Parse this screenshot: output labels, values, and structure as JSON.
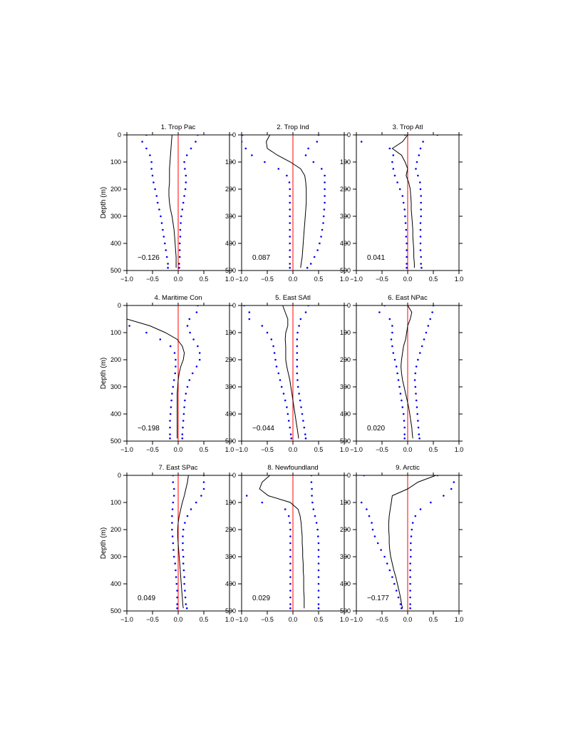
{
  "chart_data": {
    "type": "line",
    "ylabel": "Depth (m)",
    "xlim": [
      -1.0,
      1.0
    ],
    "ylim": [
      0,
      500
    ],
    "xticks": [
      "-1.0",
      "-0.5",
      "0.0",
      "0.5",
      "1.0"
    ],
    "yticks": [
      "0",
      "100",
      "200",
      "300",
      "400",
      "500"
    ],
    "colors": {
      "correlation": "#000000",
      "bound": "#0000ee",
      "zero_line": "#ff0000"
    },
    "depth": [
      0,
      25,
      50,
      75,
      100,
      125,
      150,
      175,
      200,
      225,
      250,
      275,
      300,
      325,
      350,
      375,
      400,
      425,
      450,
      475,
      490
    ],
    "panels": [
      {
        "title": "1. Trop Pac",
        "corr_label": "−0.126",
        "corr": [
          -0.12,
          -0.13,
          -0.14,
          -0.15,
          -0.16,
          -0.17,
          -0.17,
          -0.17,
          -0.18,
          -0.18,
          -0.17,
          -0.15,
          -0.12,
          -0.1,
          -0.08,
          -0.07,
          -0.06,
          -0.05,
          -0.04,
          -0.04,
          -0.04
        ],
        "lower": [
          -0.62,
          -0.7,
          -0.62,
          -0.55,
          -0.52,
          -0.52,
          -0.5,
          -0.48,
          -0.45,
          -0.42,
          -0.4,
          -0.37,
          -0.34,
          -0.32,
          -0.3,
          -0.28,
          -0.26,
          -0.24,
          -0.22,
          -0.2,
          -0.2
        ],
        "upper": [
          0.38,
          0.34,
          0.25,
          0.17,
          0.12,
          0.13,
          0.15,
          0.15,
          0.14,
          0.12,
          0.1,
          0.08,
          0.06,
          0.05,
          0.04,
          0.04,
          0.03,
          0.03,
          0.03,
          0.02,
          0.02
        ]
      },
      {
        "title": "2. Trop Ind",
        "corr_label": "0.087",
        "corr": [
          -0.45,
          -0.52,
          -0.5,
          -0.3,
          -0.05,
          0.15,
          0.23,
          0.25,
          0.26,
          0.26,
          0.26,
          0.25,
          0.24,
          0.23,
          0.22,
          0.21,
          0.2,
          0.19,
          0.18,
          0.16,
          0.15
        ],
        "lower": [
          -0.98,
          -1.0,
          -0.92,
          -0.8,
          -0.55,
          -0.28,
          -0.12,
          -0.07,
          -0.06,
          -0.06,
          -0.06,
          -0.06,
          -0.06,
          -0.06,
          -0.06,
          -0.06,
          -0.06,
          -0.06,
          -0.06,
          -0.06,
          -0.06
        ],
        "upper": [
          0.5,
          0.47,
          0.3,
          0.25,
          0.4,
          0.56,
          0.62,
          0.62,
          0.62,
          0.62,
          0.62,
          0.61,
          0.6,
          0.59,
          0.57,
          0.55,
          0.52,
          0.48,
          0.42,
          0.35,
          0.28
        ]
      },
      {
        "title": "3. Trop Atl",
        "corr_label": "0.041",
        "corr": [
          0.0,
          -0.1,
          -0.3,
          -0.12,
          -0.05,
          0.0,
          -0.03,
          0.02,
          0.05,
          0.06,
          0.07,
          0.07,
          0.08,
          0.09,
          0.1,
          0.1,
          0.11,
          0.12,
          0.12,
          0.13,
          0.13
        ],
        "lower": [
          -0.05,
          -0.9,
          -0.35,
          -0.28,
          -0.3,
          -0.28,
          -0.25,
          -0.2,
          -0.15,
          -0.1,
          -0.08,
          -0.06,
          -0.05,
          -0.04,
          -0.03,
          -0.03,
          -0.02,
          -0.02,
          -0.02,
          -0.02,
          -0.02
        ],
        "upper": [
          0.58,
          0.3,
          0.25,
          0.22,
          0.18,
          0.16,
          0.2,
          0.24,
          0.25,
          0.26,
          0.26,
          0.26,
          0.26,
          0.25,
          0.25,
          0.25,
          0.25,
          0.25,
          0.26,
          0.26,
          0.27
        ]
      },
      {
        "title": "4. Maritime Con",
        "corr_label": "−0.198",
        "corr": [
          null,
          null,
          -1.0,
          -0.55,
          -0.25,
          -0.02,
          0.08,
          0.12,
          0.1,
          0.05,
          0.02,
          0.0,
          -0.01,
          -0.02,
          -0.02,
          -0.02,
          -0.02,
          -0.02,
          -0.02,
          -0.02,
          -0.02
        ],
        "lower": [
          null,
          null,
          null,
          -0.95,
          -0.62,
          -0.35,
          -0.15,
          -0.07,
          -0.05,
          -0.05,
          -0.06,
          -0.08,
          -0.1,
          -0.12,
          -0.13,
          -0.14,
          -0.15,
          -0.16,
          -0.16,
          -0.16,
          -0.16
        ],
        "upper": [
          0.38,
          0.36,
          0.22,
          0.18,
          0.23,
          0.3,
          0.38,
          0.42,
          0.42,
          0.36,
          0.28,
          0.22,
          0.18,
          0.15,
          0.13,
          0.12,
          0.11,
          0.1,
          0.09,
          0.08,
          0.08
        ]
      },
      {
        "title": "5. East SAtl",
        "corr_label": "−0.044",
        "corr": [
          -0.2,
          -0.15,
          -0.1,
          -0.1,
          -0.14,
          -0.15,
          -0.14,
          -0.14,
          -0.14,
          -0.12,
          -0.09,
          -0.06,
          -0.04,
          -0.02,
          0.0,
          0.02,
          0.04,
          0.06,
          0.08,
          0.1,
          0.11
        ],
        "lower": [
          -0.95,
          -0.85,
          -0.85,
          -0.6,
          -0.5,
          -0.42,
          -0.38,
          -0.36,
          -0.34,
          -0.32,
          -0.28,
          -0.25,
          -0.22,
          -0.18,
          -0.15,
          -0.12,
          -0.1,
          -0.08,
          -0.06,
          -0.04,
          -0.03
        ],
        "upper": [
          0.3,
          0.25,
          0.15,
          0.12,
          0.09,
          0.08,
          0.08,
          0.08,
          0.08,
          0.08,
          0.08,
          0.09,
          0.1,
          0.12,
          0.14,
          0.16,
          0.18,
          0.2,
          0.22,
          0.24,
          0.25
        ]
      },
      {
        "title": "6. East NPac",
        "corr_label": "0.020",
        "corr": [
          0.0,
          0.08,
          0.05,
          0.0,
          -0.02,
          -0.04,
          -0.08,
          -0.1,
          -0.12,
          -0.13,
          -0.12,
          -0.1,
          -0.07,
          -0.04,
          -0.01,
          0.02,
          0.04,
          0.06,
          0.08,
          0.09,
          0.1
        ],
        "lower": [
          -0.45,
          -0.55,
          -0.35,
          -0.3,
          -0.3,
          -0.32,
          -0.3,
          -0.28,
          -0.25,
          -0.22,
          -0.2,
          -0.18,
          -0.16,
          -0.14,
          -0.12,
          -0.1,
          -0.08,
          -0.07,
          -0.06,
          -0.06,
          -0.06
        ],
        "upper": [
          0.5,
          0.48,
          0.44,
          0.4,
          0.36,
          0.32,
          0.28,
          0.24,
          0.2,
          0.17,
          0.15,
          0.14,
          0.15,
          0.16,
          0.17,
          0.18,
          0.19,
          0.2,
          0.21,
          0.22,
          0.23
        ]
      },
      {
        "title": "7. East SPac",
        "corr_label": "0.049",
        "corr": [
          0.2,
          0.18,
          0.15,
          0.12,
          0.08,
          0.05,
          0.02,
          0.0,
          -0.01,
          -0.01,
          0.0,
          0.01,
          0.02,
          0.03,
          0.04,
          0.05,
          0.06,
          0.07,
          0.08,
          0.09,
          0.1
        ],
        "lower": [
          -0.1,
          -0.1,
          -0.08,
          -0.08,
          -0.1,
          -0.11,
          -0.12,
          -0.12,
          -0.12,
          -0.11,
          -0.1,
          -0.09,
          -0.08,
          -0.06,
          -0.05,
          -0.04,
          -0.03,
          -0.02,
          -0.02,
          -0.02,
          -0.02
        ],
        "upper": [
          0.5,
          0.5,
          0.5,
          0.45,
          0.35,
          0.25,
          0.18,
          0.13,
          0.1,
          0.09,
          0.09,
          0.09,
          0.1,
          0.1,
          0.11,
          0.12,
          0.12,
          0.13,
          0.14,
          0.15,
          0.17
        ]
      },
      {
        "title": "8. Newfoundland",
        "corr_label": "0.029",
        "corr": [
          -0.45,
          -0.6,
          -0.65,
          -0.48,
          -0.05,
          0.1,
          0.14,
          0.16,
          0.17,
          0.18,
          0.18,
          0.19,
          0.19,
          0.2,
          0.2,
          0.21,
          0.21,
          0.21,
          0.22,
          0.22,
          0.22
        ],
        "lower": [
          null,
          null,
          null,
          -0.9,
          -0.6,
          -0.15,
          -0.08,
          -0.06,
          -0.05,
          -0.05,
          -0.05,
          -0.05,
          -0.05,
          -0.05,
          -0.05,
          -0.05,
          -0.05,
          -0.05,
          -0.05,
          -0.05,
          -0.05
        ],
        "upper": [
          0.36,
          0.36,
          0.37,
          0.37,
          0.38,
          0.4,
          0.43,
          0.46,
          0.48,
          0.49,
          0.5,
          0.5,
          0.5,
          0.5,
          0.5,
          0.5,
          0.5,
          0.5,
          0.5,
          0.5,
          0.5
        ]
      },
      {
        "title": "9. Arctic",
        "corr_label": "−0.177",
        "corr": [
          0.55,
          0.2,
          0.0,
          -0.3,
          -0.32,
          -0.34,
          -0.36,
          -0.37,
          -0.37,
          -0.36,
          -0.36,
          -0.35,
          -0.33,
          -0.3,
          -0.27,
          -0.23,
          -0.2,
          -0.17,
          -0.14,
          -0.12,
          -0.1
        ],
        "lower": [
          -0.85,
          null,
          null,
          null,
          -0.9,
          -0.8,
          -0.75,
          -0.7,
          -0.68,
          -0.64,
          -0.58,
          -0.52,
          -0.45,
          -0.4,
          -0.35,
          -0.3,
          -0.26,
          -0.22,
          -0.18,
          -0.14,
          -0.12
        ],
        "upper": [
          0.58,
          0.9,
          0.85,
          0.7,
          0.45,
          0.25,
          0.15,
          0.1,
          0.08,
          0.07,
          0.06,
          0.06,
          0.06,
          0.05,
          0.05,
          0.05,
          0.05,
          0.05,
          0.05,
          0.05,
          0.05
        ]
      }
    ]
  }
}
